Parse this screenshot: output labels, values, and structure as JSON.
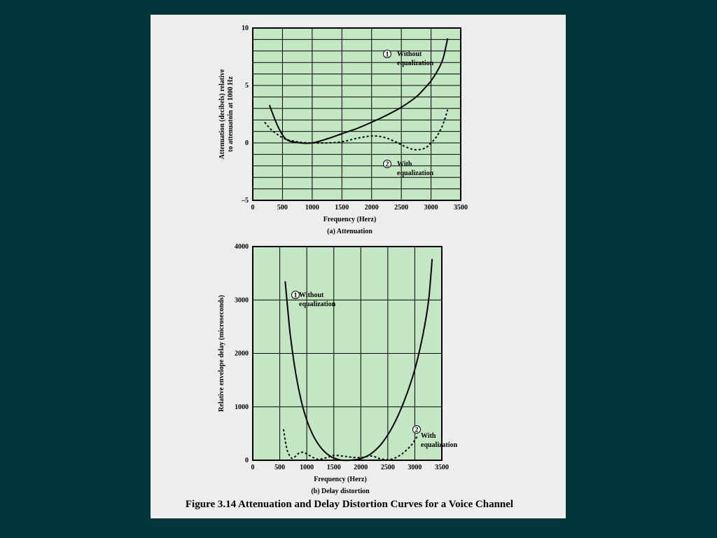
{
  "figure_caption": "Figure 3.14  Attenuation and Delay Distortion Curves for a Voice Channel",
  "colors": {
    "background": "#01373a",
    "panel": "#ededed",
    "plot_fill": "#c3e6c3",
    "grid": "#000000"
  },
  "chart_data": [
    {
      "type": "line",
      "subtitle": "(a) Attenuation",
      "xlabel": "Frequency (Herz)",
      "ylabel_line1": "Attenuation (decibels) relative",
      "ylabel_line2": "to attenuatoin at 1000 Hz",
      "xlim": [
        0,
        3500
      ],
      "ylim": [
        -5,
        10
      ],
      "x_ticks": [
        "0",
        "500",
        "1000",
        "1500",
        "2000",
        "2500",
        "3000",
        "3500"
      ],
      "y_ticks": [
        {
          "value": 10,
          "label": "10"
        },
        {
          "value": 5,
          "label": "5"
        },
        {
          "value": 0,
          "label": "0"
        },
        {
          "value": -5,
          "label": "–5"
        }
      ],
      "grid": true,
      "series": [
        {
          "id": "1",
          "style": "solid",
          "annotation": {
            "marker": "1",
            "line1": "Without",
            "line2": "equalization"
          },
          "points": [
            [
              280,
              3.3
            ],
            [
              400,
              1.7
            ],
            [
              500,
              0.7
            ],
            [
              600,
              0.2
            ],
            [
              800,
              0.0
            ],
            [
              1000,
              0.0
            ],
            [
              1250,
              0.35
            ],
            [
              1500,
              0.8
            ],
            [
              1750,
              1.25
            ],
            [
              2000,
              1.8
            ],
            [
              2250,
              2.4
            ],
            [
              2500,
              3.1
            ],
            [
              2750,
              4.0
            ],
            [
              2900,
              4.8
            ],
            [
              3000,
              5.4
            ],
            [
              3100,
              6.2
            ],
            [
              3200,
              7.3
            ],
            [
              3280,
              9.1
            ]
          ]
        },
        {
          "id": "2",
          "style": "dashed",
          "annotation": {
            "marker": "2",
            "line1": "With",
            "line2": "equalization"
          },
          "points": [
            [
              200,
              1.8
            ],
            [
              300,
              1.2
            ],
            [
              400,
              0.8
            ],
            [
              500,
              0.45
            ],
            [
              600,
              0.25
            ],
            [
              700,
              0.15
            ],
            [
              800,
              0.05
            ],
            [
              1000,
              0.0
            ],
            [
              1250,
              0.0
            ],
            [
              1500,
              0.1
            ],
            [
              1750,
              0.4
            ],
            [
              2000,
              0.6
            ],
            [
              2200,
              0.5
            ],
            [
              2400,
              0.1
            ],
            [
              2600,
              -0.4
            ],
            [
              2750,
              -0.6
            ],
            [
              2900,
              -0.45
            ],
            [
              3000,
              0.0
            ],
            [
              3100,
              0.6
            ],
            [
              3200,
              1.6
            ],
            [
              3280,
              2.9
            ]
          ]
        }
      ]
    },
    {
      "type": "line",
      "subtitle": "(b) Delay distortion",
      "xlabel": "Frequency (Herz)",
      "ylabel": "Relative envelope delay (microseconds)",
      "xlim": [
        0,
        3500
      ],
      "ylim": [
        0,
        4000
      ],
      "x_ticks": [
        "0",
        "500",
        "1000",
        "1500",
        "2000",
        "2500",
        "3000",
        "3500"
      ],
      "y_ticks": [
        {
          "value": 4000,
          "label": "4000"
        },
        {
          "value": 3000,
          "label": "3000"
        },
        {
          "value": 2000,
          "label": "2000"
        },
        {
          "value": 1000,
          "label": "1000"
        },
        {
          "value": 0,
          "label": "0"
        }
      ],
      "grid": true,
      "series": [
        {
          "id": "1",
          "style": "solid",
          "annotation": {
            "marker": "1",
            "line1": "Without",
            "line2": "equalization"
          },
          "points": [
            [
              600,
              3350
            ],
            [
              650,
              2800
            ],
            [
              700,
              2300
            ],
            [
              800,
              1600
            ],
            [
              900,
              1100
            ],
            [
              1000,
              750
            ],
            [
              1100,
              500
            ],
            [
              1200,
              320
            ],
            [
              1300,
              190
            ],
            [
              1400,
              100
            ],
            [
              1500,
              40
            ],
            [
              1650,
              0
            ],
            [
              1800,
              0
            ],
            [
              2000,
              30
            ],
            [
              2200,
              130
            ],
            [
              2400,
              330
            ],
            [
              2600,
              650
            ],
            [
              2800,
              1100
            ],
            [
              3000,
              1700
            ],
            [
              3150,
              2350
            ],
            [
              3250,
              2950
            ],
            [
              3300,
              3500
            ],
            [
              3320,
              3770
            ]
          ]
        },
        {
          "id": "2",
          "style": "dashed",
          "annotation": {
            "marker": "2",
            "line1": "With",
            "line2": "equalization"
          },
          "points": [
            [
              570,
              580
            ],
            [
              600,
              380
            ],
            [
              640,
              180
            ],
            [
              700,
              60
            ],
            [
              750,
              40
            ],
            [
              850,
              130
            ],
            [
              930,
              150
            ],
            [
              1000,
              120
            ],
            [
              1100,
              60
            ],
            [
              1200,
              20
            ],
            [
              1300,
              30
            ],
            [
              1400,
              60
            ],
            [
              1500,
              90
            ],
            [
              1650,
              80
            ],
            [
              1800,
              60
            ],
            [
              2000,
              50
            ],
            [
              2200,
              80
            ],
            [
              2350,
              30
            ],
            [
              2500,
              10
            ],
            [
              2650,
              50
            ],
            [
              2800,
              150
            ],
            [
              2950,
              300
            ],
            [
              3050,
              460
            ]
          ]
        }
      ]
    }
  ]
}
